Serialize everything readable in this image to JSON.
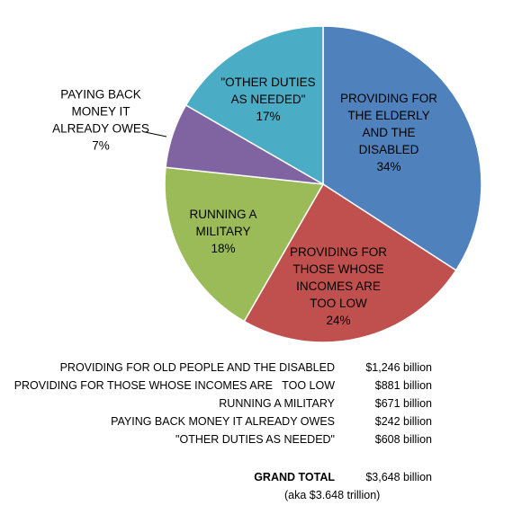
{
  "chart_data": {
    "type": "pie",
    "title": "",
    "slices": [
      {
        "label_lines": [
          "PROVIDING FOR",
          "THE ELDERLY",
          "AND THE",
          "DISABLED",
          "34%"
        ],
        "percent": 34,
        "value": 1246,
        "color": "#4f81bd"
      },
      {
        "label_lines": [
          "PROVIDING FOR",
          "THOSE WHOSE",
          "INCOMES ARE",
          "TOO LOW",
          "24%"
        ],
        "percent": 24,
        "value": 881,
        "color": "#c0504d"
      },
      {
        "label_lines": [
          "RUNNING A",
          "MILITARY",
          "18%"
        ],
        "percent": 18,
        "value": 671,
        "color": "#9bbb59"
      },
      {
        "label_lines": [
          "PAYING BACK",
          "MONEY IT",
          "ALREADY OWES",
          "7%"
        ],
        "percent": 7,
        "value": 242,
        "color": "#8064a2"
      },
      {
        "label_lines": [
          "\"OTHER DUTIES",
          "AS NEEDED\"",
          "17%"
        ],
        "percent": 17,
        "value": 608,
        "color": "#4bacc6"
      }
    ]
  },
  "table": {
    "rows": [
      {
        "label": "PROVIDING FOR OLD PEOPLE AND THE DISABLED",
        "value": "$1,246 billion"
      },
      {
        "label": "PROVIDING FOR THOSE WHOSE INCOMES ARE   TOO LOW",
        "value": "$881 billion"
      },
      {
        "label": "RUNNING A MILITARY",
        "value": "$671 billion"
      },
      {
        "label": "PAYING BACK MONEY IT ALREADY OWES",
        "value": "$242 billion"
      },
      {
        "label": "\"OTHER DUTIES AS NEEDED\"",
        "value": "$608 billion"
      }
    ],
    "total_label": "GRAND TOTAL",
    "total_value": "$3,648 billion",
    "aka": "(aka $3.648 trillion)"
  }
}
